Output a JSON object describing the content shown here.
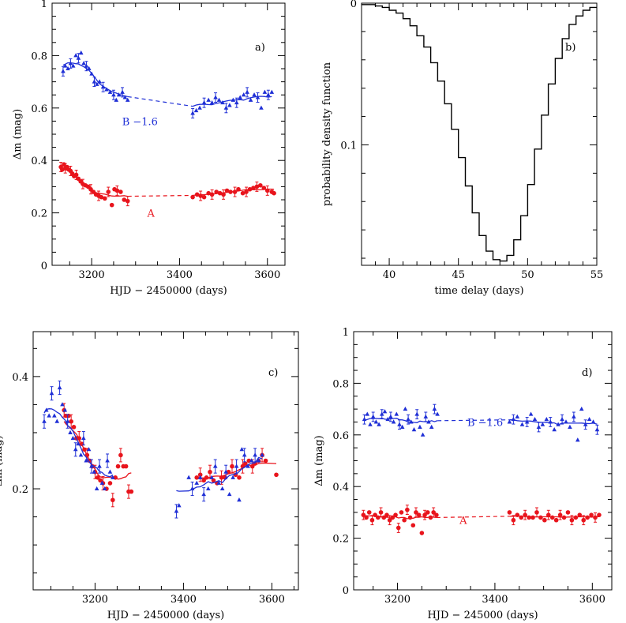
{
  "chart_data": [
    {
      "id": "a",
      "type": "scatter",
      "panel_label": "a)",
      "xlabel": "HJD − 2450000 (days)",
      "ylabel": "Δm (mag)",
      "xlim": [
        3110,
        3640
      ],
      "ylim": [
        1,
        0
      ],
      "x_ticks": [
        3200,
        3400,
        3600
      ],
      "y_ticks": [
        0,
        0.2,
        0.4,
        0.6,
        0.8,
        1
      ],
      "y_tick_labels": [
        "0",
        "0.2",
        "0.4",
        "0.6",
        "0.8",
        "1"
      ],
      "annotations": [
        {
          "text": "A",
          "x": 3335,
          "y": 0.185,
          "color": "#e8141c"
        },
        {
          "text": "B −1.6",
          "x": 3310,
          "y": 0.535,
          "color": "#1f2fd6"
        }
      ],
      "series": [
        {
          "name": "A",
          "color": "#e8141c",
          "marker": "circle",
          "x": [
            3130,
            3133,
            3137,
            3140,
            3144,
            3148,
            3152,
            3156,
            3160,
            3165,
            3170,
            3175,
            3180,
            3186,
            3192,
            3198,
            3204,
            3210,
            3216,
            3222,
            3230,
            3238,
            3246,
            3252,
            3258,
            3266,
            3274,
            3282,
            3430,
            3440,
            3448,
            3456,
            3466,
            3474,
            3484,
            3492,
            3500,
            3508,
            3516,
            3526,
            3534,
            3544,
            3552,
            3560,
            3568,
            3576,
            3584,
            3592,
            3600,
            3610,
            3615
          ],
          "y": [
            0.375,
            0.365,
            0.385,
            0.37,
            0.375,
            0.365,
            0.36,
            0.35,
            0.34,
            0.345,
            0.33,
            0.32,
            0.31,
            0.305,
            0.3,
            0.29,
            0.28,
            0.27,
            0.265,
            0.26,
            0.255,
            0.28,
            0.23,
            0.29,
            0.285,
            0.28,
            0.25,
            0.245,
            0.26,
            0.27,
            0.265,
            0.26,
            0.275,
            0.27,
            0.28,
            0.275,
            0.27,
            0.285,
            0.28,
            0.28,
            0.29,
            0.275,
            0.28,
            0.29,
            0.295,
            0.3,
            0.305,
            0.295,
            0.285,
            0.28,
            0.275
          ]
        },
        {
          "name": "B −1.6",
          "color": "#1f2fd6",
          "marker": "triangle",
          "x": [
            3135,
            3140,
            3146,
            3152,
            3158,
            3164,
            3170,
            3176,
            3182,
            3188,
            3194,
            3200,
            3206,
            3212,
            3218,
            3226,
            3234,
            3242,
            3250,
            3256,
            3262,
            3270,
            3276,
            3282,
            3430,
            3438,
            3446,
            3456,
            3466,
            3474,
            3482,
            3490,
            3498,
            3506,
            3514,
            3522,
            3530,
            3538,
            3546,
            3554,
            3562,
            3570,
            3578,
            3586,
            3594,
            3602,
            3610
          ],
          "y": [
            0.74,
            0.76,
            0.75,
            0.77,
            0.76,
            0.8,
            0.79,
            0.81,
            0.77,
            0.76,
            0.75,
            0.73,
            0.7,
            0.69,
            0.7,
            0.68,
            0.67,
            0.66,
            0.65,
            0.63,
            0.65,
            0.66,
            0.64,
            0.63,
            0.58,
            0.59,
            0.6,
            0.62,
            0.63,
            0.62,
            0.64,
            0.63,
            0.62,
            0.6,
            0.61,
            0.63,
            0.62,
            0.64,
            0.65,
            0.66,
            0.63,
            0.65,
            0.64,
            0.6,
            0.66,
            0.65,
            0.66
          ]
        }
      ]
    },
    {
      "id": "b",
      "type": "step",
      "panel_label": "b)",
      "xlabel": "time delay (days)",
      "ylabel": "probability density function",
      "xlim": [
        38,
        55
      ],
      "ylim": [
        0,
        0.185
      ],
      "x_ticks": [
        40,
        45,
        50,
        55
      ],
      "y_ticks": [
        0,
        0.1
      ],
      "y_tick_labels": [
        "0",
        "0.1"
      ],
      "series": [
        {
          "name": "",
          "color": "#000000",
          "x": [
            38.0,
            38.5,
            39.0,
            39.5,
            40.0,
            40.5,
            41.0,
            41.5,
            42.0,
            42.5,
            43.0,
            43.5,
            44.0,
            44.5,
            45.0,
            45.5,
            46.0,
            46.5,
            47.0,
            47.5,
            48.0,
            48.5,
            49.0,
            49.5,
            50.0,
            50.5,
            51.0,
            51.5,
            52.0,
            52.5,
            53.0,
            53.5,
            54.0,
            54.5
          ],
          "values": [
            0.001,
            0.001,
            0.002,
            0.003,
            0.005,
            0.007,
            0.011,
            0.016,
            0.023,
            0.031,
            0.042,
            0.055,
            0.071,
            0.089,
            0.109,
            0.129,
            0.148,
            0.164,
            0.175,
            0.181,
            0.182,
            0.178,
            0.167,
            0.15,
            0.128,
            0.103,
            0.079,
            0.057,
            0.039,
            0.025,
            0.015,
            0.009,
            0.005,
            0.003
          ]
        }
      ]
    },
    {
      "id": "c",
      "type": "scatter",
      "panel_label": "c)",
      "xlabel": "HJD − 2450000 (days)",
      "ylabel": "Δm (mag)",
      "xlim": [
        3060,
        3660
      ],
      "ylim": [
        0.48,
        0.02
      ],
      "x_ticks": [
        3200,
        3400,
        3600
      ],
      "y_ticks": [
        0.2,
        0.4
      ],
      "y_tick_labels": [
        "0.2",
        "0.4"
      ],
      "series": [
        {
          "name": "A",
          "color": "#e8141c",
          "marker": "circle",
          "x": [
            3130,
            3134,
            3140,
            3146,
            3152,
            3158,
            3164,
            3170,
            3176,
            3182,
            3188,
            3194,
            3200,
            3206,
            3212,
            3218,
            3226,
            3234,
            3240,
            3246,
            3252,
            3258,
            3264,
            3270,
            3276,
            3282,
            3430,
            3438,
            3446,
            3452,
            3460,
            3468,
            3476,
            3486,
            3494,
            3502,
            3510,
            3518,
            3526,
            3534,
            3540,
            3548,
            3556,
            3562,
            3570,
            3578,
            3586,
            3610
          ],
          "y": [
            0.34,
            0.33,
            0.33,
            0.32,
            0.31,
            0.29,
            0.29,
            0.28,
            0.27,
            0.26,
            0.25,
            0.24,
            0.23,
            0.22,
            0.215,
            0.21,
            0.2,
            0.21,
            0.18,
            0.22,
            0.24,
            0.26,
            0.24,
            0.24,
            0.195,
            0.195,
            0.22,
            0.225,
            0.215,
            0.22,
            0.23,
            0.215,
            0.21,
            0.22,
            0.22,
            0.23,
            0.24,
            0.225,
            0.22,
            0.24,
            0.245,
            0.25,
            0.24,
            0.245,
            0.25,
            0.26,
            0.25,
            0.225
          ]
        },
        {
          "name": "B −1.6",
          "color": "#1f2fd6",
          "marker": "triangle",
          "x": [
            3085,
            3090,
            3096,
            3102,
            3108,
            3114,
            3120,
            3126,
            3132,
            3138,
            3144,
            3150,
            3156,
            3162,
            3168,
            3174,
            3180,
            3186,
            3192,
            3198,
            3204,
            3210,
            3216,
            3222,
            3228,
            3234,
            3240,
            3384,
            3390,
            3412,
            3420,
            3430,
            3438,
            3446,
            3456,
            3464,
            3472,
            3480,
            3488,
            3496,
            3504,
            3512,
            3520,
            3526,
            3532,
            3538,
            3546,
            3554,
            3562,
            3570,
            3578
          ],
          "y": [
            0.32,
            0.34,
            0.33,
            0.37,
            0.33,
            0.32,
            0.38,
            0.35,
            0.34,
            0.32,
            0.3,
            0.29,
            0.27,
            0.28,
            0.26,
            0.29,
            0.25,
            0.27,
            0.24,
            0.23,
            0.2,
            0.24,
            0.21,
            0.2,
            0.25,
            0.23,
            0.22,
            0.16,
            0.17,
            0.22,
            0.2,
            0.21,
            0.22,
            0.19,
            0.2,
            0.22,
            0.24,
            0.21,
            0.2,
            0.23,
            0.19,
            0.22,
            0.24,
            0.18,
            0.27,
            0.26,
            0.24,
            0.25,
            0.26,
            0.25,
            0.26
          ]
        }
      ]
    },
    {
      "id": "d",
      "type": "scatter",
      "panel_label": "d)",
      "xlabel": "HJD − 245000 (days)",
      "ylabel": "Δm (mag)",
      "xlim": [
        3110,
        3640
      ],
      "ylim": [
        1,
        0
      ],
      "x_ticks": [
        3200,
        3400,
        3600
      ],
      "y_ticks": [
        0,
        0.2,
        0.4,
        0.6,
        0.8,
        1
      ],
      "y_tick_labels": [
        "0",
        "0.2",
        "0.4",
        "0.6",
        "0.8",
        "1"
      ],
      "annotations": [
        {
          "text": "A",
          "x": 3335,
          "y": 0.255,
          "color": "#e8141c"
        },
        {
          "text": "B −1.6",
          "x": 3380,
          "y": 0.635,
          "color": "#1f2fd6"
        }
      ],
      "series": [
        {
          "name": "A",
          "color": "#e8141c",
          "marker": "circle",
          "x": [
            3130,
            3136,
            3142,
            3148,
            3154,
            3160,
            3166,
            3172,
            3178,
            3184,
            3190,
            3196,
            3202,
            3208,
            3214,
            3220,
            3226,
            3232,
            3238,
            3244,
            3250,
            3256,
            3262,
            3268,
            3274,
            3280,
            3430,
            3438,
            3446,
            3454,
            3462,
            3470,
            3478,
            3486,
            3494,
            3502,
            3510,
            3518,
            3526,
            3534,
            3542,
            3550,
            3558,
            3566,
            3574,
            3582,
            3590,
            3598,
            3606,
            3614
          ],
          "y": [
            0.29,
            0.28,
            0.3,
            0.27,
            0.29,
            0.28,
            0.3,
            0.28,
            0.29,
            0.27,
            0.28,
            0.29,
            0.24,
            0.3,
            0.27,
            0.31,
            0.28,
            0.25,
            0.3,
            0.29,
            0.22,
            0.29,
            0.3,
            0.28,
            0.3,
            0.29,
            0.3,
            0.27,
            0.29,
            0.28,
            0.29,
            0.28,
            0.28,
            0.3,
            0.28,
            0.27,
            0.29,
            0.28,
            0.27,
            0.29,
            0.28,
            0.3,
            0.27,
            0.28,
            0.29,
            0.27,
            0.28,
            0.29,
            0.28,
            0.29
          ]
        },
        {
          "name": "B −1.6",
          "color": "#1f2fd6",
          "marker": "triangle",
          "x": [
            3132,
            3138,
            3144,
            3150,
            3156,
            3162,
            3168,
            3174,
            3180,
            3186,
            3192,
            3198,
            3204,
            3210,
            3216,
            3222,
            3228,
            3234,
            3240,
            3246,
            3252,
            3258,
            3264,
            3270,
            3276,
            3282,
            3430,
            3438,
            3446,
            3456,
            3466,
            3474,
            3482,
            3490,
            3498,
            3506,
            3514,
            3522,
            3530,
            3538,
            3546,
            3554,
            3562,
            3570,
            3578,
            3586,
            3594,
            3602,
            3610
          ],
          "y": [
            0.66,
            0.68,
            0.64,
            0.67,
            0.65,
            0.64,
            0.68,
            0.69,
            0.66,
            0.67,
            0.65,
            0.68,
            0.64,
            0.63,
            0.7,
            0.66,
            0.65,
            0.62,
            0.68,
            0.63,
            0.6,
            0.67,
            0.65,
            0.63,
            0.7,
            0.68,
            0.65,
            0.66,
            0.67,
            0.64,
            0.65,
            0.68,
            0.66,
            0.63,
            0.64,
            0.66,
            0.65,
            0.62,
            0.64,
            0.66,
            0.65,
            0.63,
            0.67,
            0.58,
            0.7,
            0.64,
            0.66,
            0.65,
            0.62
          ]
        }
      ]
    }
  ]
}
